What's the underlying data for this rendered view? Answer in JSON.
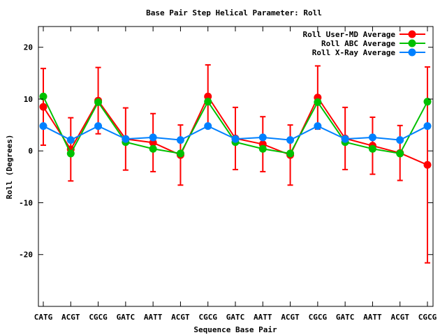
{
  "chart_data": {
    "type": "line",
    "title": "Base Pair Step Helical Parameter: Roll",
    "xlabel": "Sequence Base Pair",
    "ylabel": "Roll (Degrees)",
    "categories": [
      "CATG",
      "ACGT",
      "CGCG",
      "GATC",
      "AATT",
      "ACGT",
      "CGCG",
      "GATC",
      "AATT",
      "ACGT",
      "CGCG",
      "GATC",
      "AATT",
      "ACGT",
      "CGCG"
    ],
    "ylim": [
      -30,
      24
    ],
    "yticks": [
      -20,
      -10,
      0,
      10,
      20
    ],
    "grid": false,
    "legend_position": "top-right",
    "series": [
      {
        "name": "Roll User-MD Average",
        "color": "#ff0000",
        "values": [
          8.5,
          0.3,
          9.7,
          2.3,
          1.6,
          -0.8,
          10.5,
          2.4,
          1.3,
          -0.8,
          10.3,
          2.4,
          1.0,
          -0.4,
          -2.7
        ],
        "error": [
          7.4,
          6.1,
          6.4,
          6.0,
          5.6,
          5.8,
          6.1,
          6.0,
          5.3,
          5.8,
          6.1,
          6.0,
          5.5,
          5.3,
          18.9
        ]
      },
      {
        "name": "Roll ABC Average",
        "color": "#00c000",
        "values": [
          10.5,
          -0.5,
          9.4,
          1.7,
          0.4,
          -0.5,
          9.5,
          1.7,
          0.4,
          -0.5,
          9.4,
          1.7,
          0.4,
          -0.5,
          9.5
        ]
      },
      {
        "name": "Roll X-Ray Average",
        "color": "#0080ff",
        "values": [
          4.8,
          2.1,
          4.8,
          2.3,
          2.6,
          2.1,
          4.8,
          2.3,
          2.6,
          2.1,
          4.8,
          2.3,
          2.6,
          2.1,
          4.8
        ]
      }
    ]
  }
}
